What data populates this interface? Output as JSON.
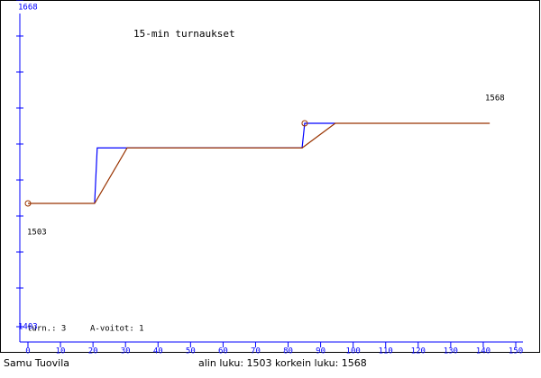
{
  "chart_data": {
    "type": "line",
    "title": "15-min turnaukset",
    "xlim": [
      0,
      150
    ],
    "xticks": [
      0,
      10,
      20,
      30,
      40,
      50,
      60,
      70,
      80,
      90,
      100,
      110,
      120,
      130,
      140,
      150
    ],
    "ylim": [
      1403,
      1668
    ],
    "yticks": [
      1403,
      1668
    ],
    "series": [
      {
        "color": "#0000ff",
        "x": [
          20.5,
          21.3,
          84.3,
          85.1,
          94.5
        ],
        "values": [
          1503,
          1548,
          1548,
          1568,
          1568
        ]
      },
      {
        "color": "#993300",
        "x": [
          0,
          20.5,
          30.5,
          84.3,
          94.5,
          142
        ],
        "values": [
          1503,
          1503,
          1548,
          1548,
          1568,
          1568
        ]
      }
    ],
    "circle_points": {
      "color": "#993300",
      "x": [
        0,
        85.1
      ],
      "values": [
        1503,
        1568
      ]
    },
    "start_value": 1503,
    "end_value": 1568,
    "stats": [
      "turn.: 3",
      "A-voitot: 1"
    ],
    "footer_left": "Samu Tuovila",
    "footer_center": "alin luku: 1503  korkein luku: 1568"
  }
}
